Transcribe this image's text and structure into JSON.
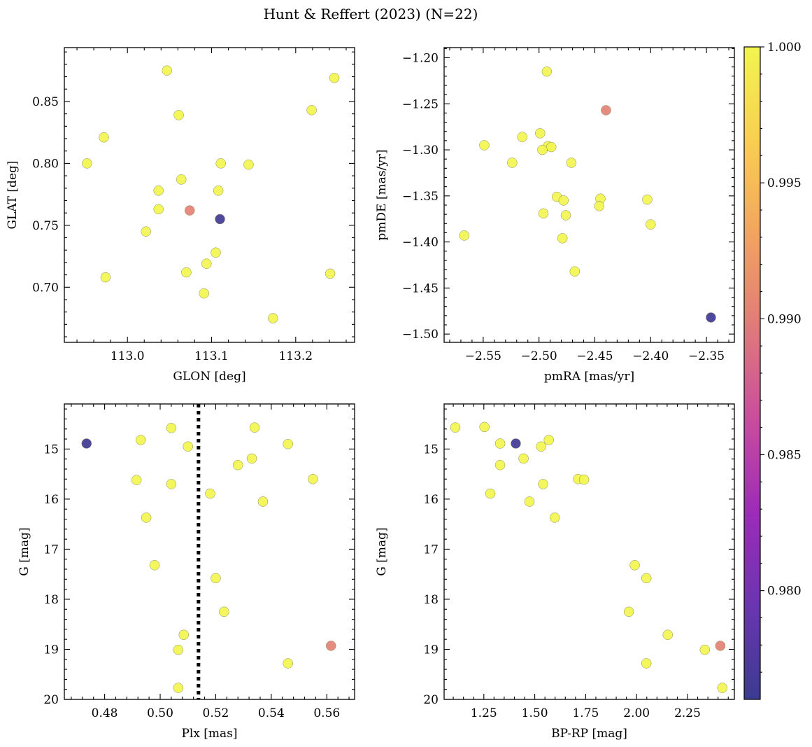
{
  "figure": {
    "title": "Hunt & Reffert (2023) (N=22)"
  },
  "colorbar": {
    "min": 0.976,
    "max": 1.0,
    "ticks": [
      "0.980",
      "0.985",
      "0.990",
      "0.995",
      "1.000"
    ],
    "tick_values": [
      0.98,
      0.985,
      0.99,
      0.995,
      1.0
    ],
    "colormap": "plasma",
    "color_stops": [
      "#3b3b91",
      "#6a35b0",
      "#9c2bb8",
      "#c94d9d",
      "#e07a7a",
      "#f3a45f",
      "#f8cf52",
      "#f2f54e"
    ]
  },
  "chart_data": [
    {
      "id": "sky",
      "type": "scatter",
      "xlabel": "GLON [deg]",
      "ylabel": "GLAT [deg]",
      "xlim": [
        112.925,
        113.27
      ],
      "ylim": [
        0.6555,
        0.8935
      ],
      "xticks": [
        113.0,
        113.1,
        113.2
      ],
      "xtick_labels": [
        "113.0",
        "113.1",
        "113.2"
      ],
      "yticks": [
        0.7,
        0.75,
        0.8,
        0.85
      ],
      "ytick_labels": [
        "0.70",
        "0.75",
        "0.80",
        "0.85"
      ],
      "invert_y": false,
      "points": [
        {
          "x": 113.047,
          "y": 0.875,
          "c": 1.0
        },
        {
          "x": 113.246,
          "y": 0.869,
          "c": 1.0
        },
        {
          "x": 113.219,
          "y": 0.843,
          "c": 1.0
        },
        {
          "x": 113.061,
          "y": 0.839,
          "c": 1.0
        },
        {
          "x": 112.972,
          "y": 0.821,
          "c": 1.0
        },
        {
          "x": 112.952,
          "y": 0.8,
          "c": 1.0
        },
        {
          "x": 113.111,
          "y": 0.8,
          "c": 1.0
        },
        {
          "x": 113.144,
          "y": 0.799,
          "c": 1.0
        },
        {
          "x": 113.064,
          "y": 0.787,
          "c": 1.0
        },
        {
          "x": 113.037,
          "y": 0.778,
          "c": 1.0
        },
        {
          "x": 113.108,
          "y": 0.778,
          "c": 1.0
        },
        {
          "x": 113.037,
          "y": 0.763,
          "c": 1.0
        },
        {
          "x": 113.074,
          "y": 0.762,
          "c": 0.9903
        },
        {
          "x": 113.11,
          "y": 0.755,
          "c": 0.9764
        },
        {
          "x": 113.022,
          "y": 0.745,
          "c": 1.0
        },
        {
          "x": 113.105,
          "y": 0.728,
          "c": 1.0
        },
        {
          "x": 113.094,
          "y": 0.719,
          "c": 1.0
        },
        {
          "x": 113.07,
          "y": 0.712,
          "c": 1.0
        },
        {
          "x": 113.241,
          "y": 0.711,
          "c": 1.0
        },
        {
          "x": 112.974,
          "y": 0.708,
          "c": 1.0
        },
        {
          "x": 113.091,
          "y": 0.695,
          "c": 1.0
        },
        {
          "x": 113.173,
          "y": 0.675,
          "c": 1.0
        }
      ]
    },
    {
      "id": "pm",
      "type": "scatter",
      "xlabel": "pmRA [mas/yr]",
      "ylabel": "pmDE [mas/yr]",
      "xlim": [
        -2.585,
        -2.325
      ],
      "ylim": [
        -1.509,
        -1.189
      ],
      "xticks": [
        -2.55,
        -2.5,
        -2.45,
        -2.4,
        -2.35
      ],
      "xtick_labels": [
        "−2.55",
        "−2.50",
        "−2.45",
        "−2.40",
        "−2.35"
      ],
      "yticks": [
        -1.5,
        -1.45,
        -1.4,
        -1.35,
        -1.3,
        -1.25,
        -1.2
      ],
      "ytick_labels": [
        "−1.50",
        "−1.45",
        "−1.40",
        "−1.35",
        "−1.30",
        "−1.25",
        "−1.20"
      ],
      "invert_y": false,
      "points": [
        {
          "x": -2.493,
          "y": -1.215,
          "c": 1.0
        },
        {
          "x": -2.44,
          "y": -1.257,
          "c": 0.9903
        },
        {
          "x": -2.499,
          "y": -1.282,
          "c": 1.0
        },
        {
          "x": -2.515,
          "y": -1.286,
          "c": 1.0
        },
        {
          "x": -2.549,
          "y": -1.295,
          "c": 1.0
        },
        {
          "x": -2.492,
          "y": -1.296,
          "c": 1.0
        },
        {
          "x": -2.489,
          "y": -1.297,
          "c": 1.0
        },
        {
          "x": -2.497,
          "y": -1.3,
          "c": 1.0
        },
        {
          "x": -2.524,
          "y": -1.314,
          "c": 1.0
        },
        {
          "x": -2.471,
          "y": -1.314,
          "c": 1.0
        },
        {
          "x": -2.484,
          "y": -1.351,
          "c": 1.0
        },
        {
          "x": -2.445,
          "y": -1.353,
          "c": 1.0
        },
        {
          "x": -2.403,
          "y": -1.354,
          "c": 1.0
        },
        {
          "x": -2.478,
          "y": -1.355,
          "c": 1.0
        },
        {
          "x": -2.446,
          "y": -1.361,
          "c": 1.0
        },
        {
          "x": -2.496,
          "y": -1.369,
          "c": 1.0
        },
        {
          "x": -2.476,
          "y": -1.371,
          "c": 1.0
        },
        {
          "x": -2.4,
          "y": -1.381,
          "c": 1.0
        },
        {
          "x": -2.567,
          "y": -1.393,
          "c": 1.0
        },
        {
          "x": -2.479,
          "y": -1.396,
          "c": 1.0
        },
        {
          "x": -2.468,
          "y": -1.432,
          "c": 1.0
        },
        {
          "x": -2.346,
          "y": -1.482,
          "c": 0.9764
        }
      ]
    },
    {
      "id": "plx",
      "type": "scatter",
      "xlabel": "Plx [mas]",
      "ylabel": "G [mag]",
      "xlim": [
        0.4655,
        0.57
      ],
      "ylim": [
        14.1,
        20.0
      ],
      "xticks": [
        0.48,
        0.5,
        0.52,
        0.54,
        0.56
      ],
      "xtick_labels": [
        "0.48",
        "0.50",
        "0.52",
        "0.54",
        "0.56"
      ],
      "yticks": [
        15,
        16,
        17,
        18,
        19,
        20
      ],
      "ytick_labels": [
        "15",
        "16",
        "17",
        "18",
        "19",
        "20"
      ],
      "invert_y": true,
      "vline": {
        "x": 0.5138,
        "style": "dotted"
      },
      "points": [
        {
          "x": 0.504,
          "y": 14.58,
          "c": 1.0
        },
        {
          "x": 0.534,
          "y": 14.57,
          "c": 1.0
        },
        {
          "x": 0.493,
          "y": 14.82,
          "c": 1.0
        },
        {
          "x": 0.4735,
          "y": 14.89,
          "c": 0.9764
        },
        {
          "x": 0.546,
          "y": 14.9,
          "c": 1.0
        },
        {
          "x": 0.51,
          "y": 14.95,
          "c": 1.0
        },
        {
          "x": 0.533,
          "y": 15.19,
          "c": 1.0
        },
        {
          "x": 0.528,
          "y": 15.32,
          "c": 1.0
        },
        {
          "x": 0.555,
          "y": 15.6,
          "c": 1.0
        },
        {
          "x": 0.4915,
          "y": 15.62,
          "c": 1.0
        },
        {
          "x": 0.504,
          "y": 15.7,
          "c": 1.0
        },
        {
          "x": 0.518,
          "y": 15.89,
          "c": 1.0
        },
        {
          "x": 0.537,
          "y": 16.05,
          "c": 1.0
        },
        {
          "x": 0.495,
          "y": 16.37,
          "c": 1.0
        },
        {
          "x": 0.498,
          "y": 17.32,
          "c": 1.0
        },
        {
          "x": 0.52,
          "y": 17.58,
          "c": 1.0
        },
        {
          "x": 0.523,
          "y": 18.25,
          "c": 1.0
        },
        {
          "x": 0.5085,
          "y": 18.71,
          "c": 1.0
        },
        {
          "x": 0.5615,
          "y": 18.93,
          "c": 0.9903
        },
        {
          "x": 0.5065,
          "y": 19.01,
          "c": 1.0
        },
        {
          "x": 0.546,
          "y": 19.28,
          "c": 1.0
        },
        {
          "x": 0.5065,
          "y": 19.77,
          "c": 1.0
        }
      ]
    },
    {
      "id": "cmd",
      "type": "scatter",
      "xlabel": "BP-RP [mag]",
      "ylabel": "G [mag]",
      "xlim": [
        1.055,
        2.48
      ],
      "ylim": [
        14.1,
        20.0
      ],
      "xticks": [
        1.25,
        1.5,
        1.75,
        2.0,
        2.25
      ],
      "xtick_labels": [
        "1.25",
        "1.50",
        "1.75",
        "2.00",
        "2.25"
      ],
      "yticks": [
        15,
        16,
        17,
        18,
        19,
        20
      ],
      "ytick_labels": [
        "15",
        "16",
        "17",
        "18",
        "19",
        "20"
      ],
      "invert_y": true,
      "points": [
        {
          "x": 1.11,
          "y": 14.57,
          "c": 1.0
        },
        {
          "x": 1.253,
          "y": 14.56,
          "c": 1.0
        },
        {
          "x": 1.33,
          "y": 14.89,
          "c": 1.0
        },
        {
          "x": 1.407,
          "y": 14.89,
          "c": 0.9764
        },
        {
          "x": 1.531,
          "y": 14.95,
          "c": 1.0
        },
        {
          "x": 1.569,
          "y": 14.82,
          "c": 1.0
        },
        {
          "x": 1.445,
          "y": 15.19,
          "c": 1.0
        },
        {
          "x": 1.33,
          "y": 15.32,
          "c": 1.0
        },
        {
          "x": 1.713,
          "y": 15.6,
          "c": 1.0
        },
        {
          "x": 1.742,
          "y": 15.61,
          "c": 1.0
        },
        {
          "x": 1.541,
          "y": 15.7,
          "c": 1.0
        },
        {
          "x": 1.282,
          "y": 15.89,
          "c": 1.0
        },
        {
          "x": 1.474,
          "y": 16.05,
          "c": 1.0
        },
        {
          "x": 1.598,
          "y": 16.37,
          "c": 1.0
        },
        {
          "x": 1.991,
          "y": 17.32,
          "c": 1.0
        },
        {
          "x": 2.048,
          "y": 17.58,
          "c": 1.0
        },
        {
          "x": 1.962,
          "y": 18.25,
          "c": 1.0
        },
        {
          "x": 2.153,
          "y": 18.71,
          "c": 1.0
        },
        {
          "x": 2.411,
          "y": 18.93,
          "c": 0.9903
        },
        {
          "x": 2.335,
          "y": 19.01,
          "c": 1.0
        },
        {
          "x": 2.048,
          "y": 19.28,
          "c": 1.0
        },
        {
          "x": 2.421,
          "y": 19.77,
          "c": 1.0
        }
      ]
    }
  ]
}
